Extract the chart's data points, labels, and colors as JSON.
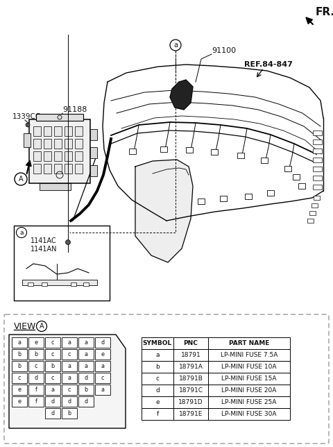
{
  "bg_color": "#ffffff",
  "text_color": "#111111",
  "line_color": "#000000",
  "dashed_border_color": "#999999",
  "fr_label": "FR.",
  "pn_main": "91100",
  "pn_91188": "91188",
  "pn_1339CC": "1339CC",
  "pn_ref": "REF.84-847",
  "pn_1141AC": "1141AC",
  "pn_1141AN": "1141AN",
  "view_label": "VIEW",
  "view_circle": "A",
  "table_headers": [
    "SYMBOL",
    "PNC",
    "PART NAME"
  ],
  "table_rows": [
    [
      "a",
      "18791",
      "LP-MINI FUSE 7.5A"
    ],
    [
      "b",
      "18791A",
      "LP-MINI FUSE 10A"
    ],
    [
      "c",
      "18791B",
      "LP-MINI FUSE 15A"
    ],
    [
      "d",
      "18791C",
      "LP-MINI FUSE 20A"
    ],
    [
      "e",
      "18791D",
      "LP-MINI FUSE 25A"
    ],
    [
      "f",
      "18791E",
      "LP-MINI FUSE 30A"
    ]
  ],
  "fuse_grid": [
    [
      "a",
      "e",
      "c",
      "a",
      "a",
      "d"
    ],
    [
      "b",
      "b",
      "c",
      "c",
      "a",
      "e"
    ],
    [
      "b",
      "c",
      "b",
      "a",
      "a",
      "a"
    ],
    [
      "c",
      "d",
      "c",
      "a",
      "d",
      "c"
    ],
    [
      "e",
      "f",
      "a",
      "c",
      "b",
      "a"
    ],
    [
      "e",
      "f",
      "d",
      "d",
      "d",
      ""
    ]
  ],
  "fuse_bottom": [
    "d",
    "b"
  ]
}
